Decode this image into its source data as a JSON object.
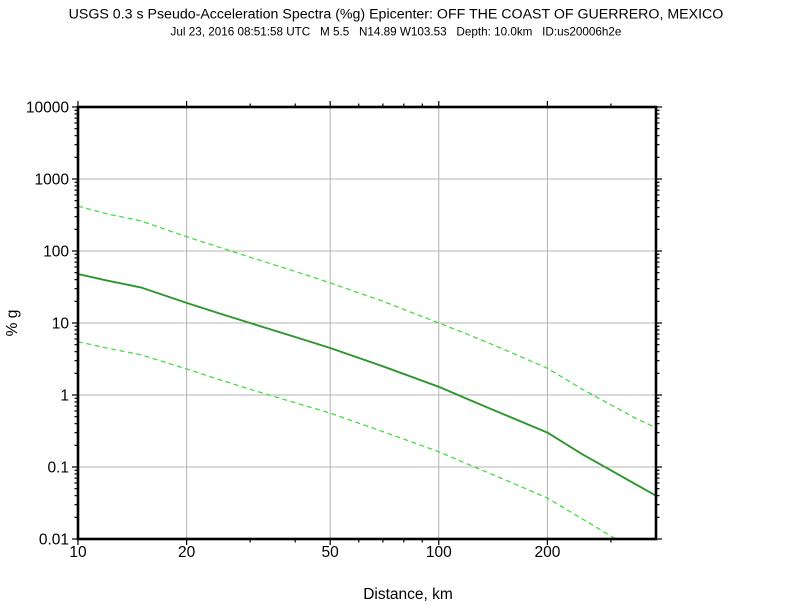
{
  "header": {
    "title": "USGS 0.3 s Pseudo-Acceleration Spectra (%g) Epicenter: OFF THE COAST OF GUERRERO, MEXICO",
    "subtitle": "Jul 23, 2016 08:51:58 UTC   M 5.5   N14.89 W103.53   Depth: 10.0km   ID:us20006h2e"
  },
  "colors": {
    "median_line": "#2d962d",
    "sigma_line": "#46dc46",
    "gridline": "#b3b3b3",
    "frame": "#000000",
    "background": "#ffffff"
  },
  "chart_data": {
    "type": "line",
    "title": "USGS 0.3 s Pseudo-Acceleration Spectra (%g) Epicenter: OFF THE COAST OF GUERRERO, MEXICO",
    "subtitle": "Jul 23, 2016 08:51:58 UTC   M 5.5   N14.89 W103.53   Depth: 10.0km   ID:us20006h2e",
    "xlabel": "Distance, km",
    "ylabel": "% g",
    "x_scale": "log",
    "y_scale": "log",
    "xlim": [
      10,
      400
    ],
    "ylim": [
      0.01,
      10000
    ],
    "grid": true,
    "legend_position": "none",
    "x_tick_values": [
      10,
      20,
      50,
      100,
      200
    ],
    "x_tick_labels": [
      "10",
      "20",
      "50",
      "100",
      "200"
    ],
    "x_minor_tick_values": [
      30,
      40,
      60,
      70,
      80,
      90,
      300
    ],
    "y_tick_values": [
      10000,
      1000,
      100,
      10,
      1,
      0.1,
      0.01
    ],
    "y_tick_labels": [
      "10000",
      "1000",
      "100",
      "10",
      "1",
      "0.1",
      "0.01"
    ],
    "x": [
      10,
      12,
      15,
      20,
      25,
      30,
      40,
      50,
      70,
      100,
      120,
      150,
      200,
      250,
      300,
      350,
      400
    ],
    "series": [
      {
        "name": "median",
        "style": "solid",
        "color": "#2d962d",
        "width": 1.9,
        "values": [
          48,
          39,
          31,
          19,
          13.3,
          10,
          6.4,
          4.5,
          2.5,
          1.3,
          0.88,
          0.55,
          0.3,
          0.15,
          0.09,
          0.058,
          0.04
        ]
      },
      {
        "name": "plus-sigma",
        "style": "dashed",
        "color": "#46dc46",
        "width": 1.3,
        "values": [
          420,
          330,
          260,
          158,
          110,
          82,
          52,
          36,
          20,
          10,
          7.0,
          4.4,
          2.35,
          1.2,
          0.73,
          0.48,
          0.35
        ]
      },
      {
        "name": "minus-sigma",
        "style": "dashed",
        "color": "#46dc46",
        "width": 1.3,
        "values": [
          5.5,
          4.5,
          3.6,
          2.3,
          1.6,
          1.2,
          0.78,
          0.56,
          0.31,
          0.163,
          0.11,
          0.069,
          0.037,
          0.019,
          0.011,
          0.007,
          0.0048
        ]
      }
    ]
  }
}
